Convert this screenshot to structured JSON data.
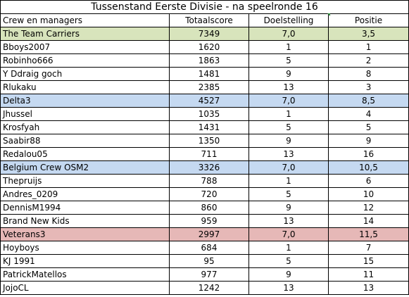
{
  "title": "Tussenstand Eerste Divisie - na speelronde 16",
  "headers": [
    "Crew en managers",
    "Totaalscore",
    "Doelstelling",
    "Positie"
  ],
  "rows": [
    {
      "type": "team",
      "color": "#d8e4bc",
      "name": "The Team Carriers",
      "score": "7349",
      "goal": "7,0",
      "pos": "3,5"
    },
    {
      "type": "manager",
      "name": "Bboys2007",
      "score": "1620",
      "goal": "1",
      "pos": "1"
    },
    {
      "type": "manager",
      "name": "Robinho666",
      "score": "1863",
      "goal": "5",
      "pos": "2"
    },
    {
      "type": "manager",
      "name": "Y Ddraig goch",
      "score": "1481",
      "goal": "9",
      "pos": "8"
    },
    {
      "type": "manager",
      "name": "Rlukaku",
      "score": "2385",
      "goal": "13",
      "pos": "3"
    },
    {
      "type": "team",
      "color": "#c5d9f1",
      "name": "Delta3",
      "score": "4527",
      "goal": "7,0",
      "pos": "8,5"
    },
    {
      "type": "manager",
      "name": "Jhussel",
      "score": "1035",
      "goal": "1",
      "pos": "4"
    },
    {
      "type": "manager",
      "name": "Krosfyah",
      "score": "1431",
      "goal": "5",
      "pos": "5"
    },
    {
      "type": "manager",
      "name": "Saabir88",
      "score": "1350",
      "goal": "9",
      "pos": "9"
    },
    {
      "type": "manager",
      "name": "Redalou05",
      "score": "711",
      "goal": "13",
      "pos": "16"
    },
    {
      "type": "team",
      "color": "#c5d9f1",
      "name": "Belgium Crew OSM2",
      "score": "3326",
      "goal": "7,0",
      "pos": "10,5"
    },
    {
      "type": "manager",
      "name": "Thepruijs",
      "score": "788",
      "goal": "1",
      "pos": "6"
    },
    {
      "type": "manager",
      "name": "Andres_0209",
      "score": "720",
      "goal": "5",
      "pos": "10"
    },
    {
      "type": "manager",
      "name": "DennisM1994",
      "score": "860",
      "goal": "9",
      "pos": "12"
    },
    {
      "type": "manager",
      "name": "Brand New Kids",
      "score": "959",
      "goal": "13",
      "pos": "14"
    },
    {
      "type": "team",
      "color": "#e6b8b7",
      "name": "Veterans3",
      "score": "2997",
      "goal": "7,0",
      "pos": "11,5"
    },
    {
      "type": "manager",
      "name": "Hoyboys",
      "score": "684",
      "goal": "1",
      "pos": "7"
    },
    {
      "type": "manager",
      "name": "KJ 1991",
      "score": "95",
      "goal": "5",
      "pos": "15"
    },
    {
      "type": "manager",
      "name": "PatrickMatellos",
      "score": "977",
      "goal": "9",
      "pos": "11"
    },
    {
      "type": "manager",
      "name": "JojoCL",
      "score": "1242",
      "goal": "13",
      "pos": "13"
    }
  ]
}
